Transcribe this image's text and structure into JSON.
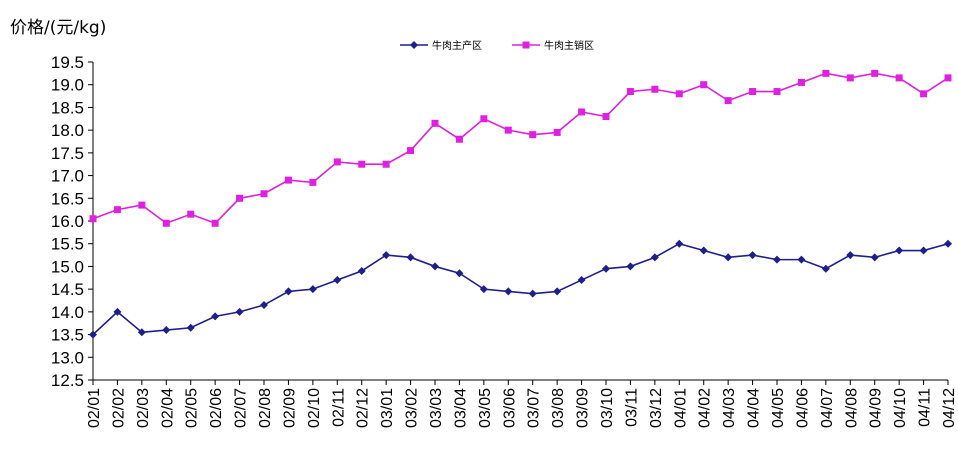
{
  "chart_data": {
    "type": "line",
    "ylabel": "价格/(元/kg)",
    "ylim": [
      12.5,
      19.5
    ],
    "y_ticks": [
      "12.5",
      "13.0",
      "13.5",
      "14.0",
      "14.5",
      "15.0",
      "15.5",
      "16.0",
      "16.5",
      "17.0",
      "17.5",
      "18.0",
      "18.5",
      "19.0",
      "19.5"
    ],
    "categories": [
      "02/01",
      "02/02",
      "02/03",
      "02/04",
      "02/05",
      "02/06",
      "02/07",
      "02/08",
      "02/09",
      "02/10",
      "02/11",
      "02/12",
      "03/01",
      "03/02",
      "03/03",
      "03/04",
      "03/05",
      "03/06",
      "03/07",
      "03/08",
      "03/09",
      "03/10",
      "03/11",
      "03/12",
      "04/01",
      "04/02",
      "04/03",
      "04/04",
      "04/05",
      "04/06",
      "04/07",
      "04/08",
      "04/09",
      "04/10",
      "04/11",
      "04/12"
    ],
    "legend_position": "top-center",
    "grid": false,
    "series": [
      {
        "name": "牛肉主产区",
        "color": "#1f1f8c",
        "marker": "diamond",
        "values": [
          13.5,
          14.0,
          13.55,
          13.6,
          13.65,
          13.9,
          14.0,
          14.15,
          14.45,
          14.5,
          14.7,
          14.9,
          15.25,
          15.2,
          15.0,
          14.85,
          14.5,
          14.45,
          14.4,
          14.45,
          14.7,
          14.95,
          15.0,
          15.2,
          15.5,
          15.35,
          15.2,
          15.25,
          15.15,
          15.15,
          14.95,
          15.25,
          15.2,
          15.35,
          15.35,
          15.5
        ]
      },
      {
        "name": "牛肉主销区",
        "color": "#e020e0",
        "marker": "square",
        "values": [
          16.05,
          16.25,
          16.35,
          15.95,
          16.15,
          15.95,
          16.5,
          16.6,
          16.9,
          16.85,
          17.3,
          17.25,
          17.25,
          17.55,
          18.15,
          17.8,
          18.25,
          18.0,
          17.9,
          17.95,
          18.4,
          18.3,
          18.85,
          18.9,
          18.8,
          19.0,
          18.65,
          18.85,
          18.85,
          19.05,
          19.25,
          19.15,
          19.25,
          19.15,
          18.8,
          19.15
        ]
      }
    ]
  }
}
